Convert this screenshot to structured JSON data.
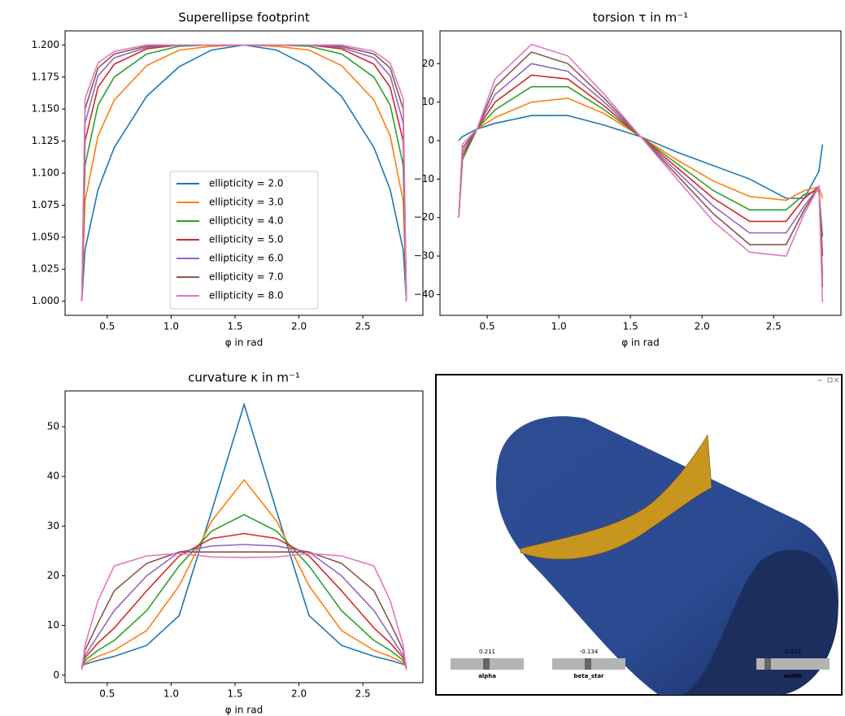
{
  "chart_data": [
    {
      "type": "line",
      "title": "Superellipse footprint",
      "x_label": "φ in rad",
      "legend": "lower center",
      "x": [
        0.301,
        0.326,
        0.428,
        0.555,
        0.809,
        1.063,
        1.317,
        1.571,
        1.825,
        2.079,
        2.333,
        2.587,
        2.714,
        2.816,
        2.841
      ],
      "xlim": [
        0.17,
        2.97
      ],
      "xticks": [
        0.5,
        {
          "value": 1,
          "label": "1.0"
        },
        1.5,
        {
          "value": 2,
          "label": "2.0"
        },
        2.5
      ],
      "ylim": [
        0.989,
        1.211
      ],
      "yticks": [
        {
          "value": 1,
          "label": "1.000"
        },
        {
          "value": 1.025,
          "label": "1.025"
        },
        {
          "value": 1.05,
          "label": "1.050"
        },
        {
          "value": 1.075,
          "label": "1.075"
        },
        {
          "value": 1.1,
          "label": "1.100"
        },
        {
          "value": 1.125,
          "label": "1.125"
        },
        {
          "value": 1.15,
          "label": "1.150"
        },
        {
          "value": 1.175,
          "label": "1.175"
        },
        {
          "value": 1.2,
          "label": "1.200"
        }
      ],
      "series": [
        {
          "name": "ellipticity = 2.0",
          "color": "#1f77b4",
          "values": [
            1.0,
            1.04,
            1.087,
            1.12,
            1.16,
            1.183,
            1.196,
            1.2,
            1.196,
            1.183,
            1.16,
            1.12,
            1.087,
            1.04,
            1.0
          ]
        },
        {
          "name": "ellipticity = 3.0",
          "color": "#ff7f0e",
          "values": [
            1.0,
            1.078,
            1.129,
            1.157,
            1.184,
            1.196,
            1.199,
            1.2,
            1.199,
            1.196,
            1.184,
            1.157,
            1.129,
            1.078,
            1.0
          ]
        },
        {
          "name": "ellipticity = 4.0",
          "color": "#2ca02c",
          "values": [
            1.0,
            1.106,
            1.153,
            1.175,
            1.193,
            1.199,
            1.2,
            1.2,
            1.2,
            1.199,
            1.193,
            1.175,
            1.153,
            1.106,
            1.0
          ]
        },
        {
          "name": "ellipticity = 5.0",
          "color": "#d62728",
          "values": [
            1.0,
            1.125,
            1.167,
            1.185,
            1.197,
            1.2,
            1.2,
            1.2,
            1.2,
            1.2,
            1.197,
            1.185,
            1.167,
            1.125,
            1.0
          ]
        },
        {
          "name": "ellipticity = 6.0",
          "color": "#9467bd",
          "values": [
            1.0,
            1.139,
            1.176,
            1.19,
            1.198,
            1.2,
            1.2,
            1.2,
            1.2,
            1.2,
            1.198,
            1.19,
            1.176,
            1.139,
            1.0
          ]
        },
        {
          "name": "ellipticity = 7.0",
          "color": "#8c564b",
          "values": [
            1.0,
            1.15,
            1.182,
            1.193,
            1.199,
            1.2,
            1.2,
            1.2,
            1.2,
            1.2,
            1.199,
            1.193,
            1.182,
            1.15,
            1.0
          ]
        },
        {
          "name": "ellipticity = 8.0",
          "color": "#e377c2",
          "values": [
            1.0,
            1.158,
            1.186,
            1.195,
            1.2,
            1.2,
            1.2,
            1.2,
            1.2,
            1.2,
            1.2,
            1.195,
            1.186,
            1.158,
            1.0
          ]
        }
      ]
    },
    {
      "type": "line",
      "title": "torsion τ in m⁻¹",
      "x_label": "φ in rad",
      "x": [
        0.301,
        0.326,
        0.428,
        0.555,
        0.809,
        1.063,
        1.317,
        1.571,
        1.825,
        2.079,
        2.333,
        2.587,
        2.714,
        2.816,
        2.841
      ],
      "xlim": [
        0.17,
        2.97
      ],
      "xticks": [
        0.5,
        {
          "value": 1,
          "label": "1.0"
        },
        1.5,
        {
          "value": 2,
          "label": "2.0"
        },
        2.5
      ],
      "ylim": [
        -45.4,
        28.5
      ],
      "yticks": [
        {
          "value": -40,
          "label": "−40"
        },
        {
          "value": -30,
          "label": "−30"
        },
        {
          "value": -20,
          "label": "−20"
        },
        {
          "value": -10,
          "label": "−10"
        },
        0,
        10,
        20
      ],
      "series": [
        {
          "color": "#1f77b4",
          "values": [
            0,
            1,
            3,
            4.5,
            6.5,
            6.5,
            4,
            1,
            -3,
            -6.5,
            -10,
            -15,
            -15,
            -8,
            -1
          ]
        },
        {
          "color": "#ff7f0e",
          "values": [
            -20,
            -5,
            3,
            6,
            10,
            11,
            7,
            1,
            -5,
            -10.5,
            -14.5,
            -15.5,
            -13,
            -12,
            -15
          ]
        },
        {
          "color": "#2ca02c",
          "values": [
            -20,
            -5,
            3,
            8,
            14,
            14,
            8,
            1,
            -6,
            -13,
            -18,
            -18,
            -14,
            -13,
            -25
          ]
        },
        {
          "color": "#d62728",
          "values": [
            -20,
            -4,
            3,
            10,
            17,
            16,
            9,
            1,
            -7,
            -15,
            -21,
            -21,
            -15,
            -12,
            -30
          ]
        },
        {
          "color": "#9467bd",
          "values": [
            -20,
            -3,
            3,
            12,
            20,
            18,
            10,
            1,
            -8,
            -17,
            -24,
            -24,
            -17,
            -12,
            -35
          ]
        },
        {
          "color": "#8c564b",
          "values": [
            -20,
            -2,
            3,
            14,
            23,
            20,
            11,
            1,
            -9,
            -19,
            -27,
            -27,
            -18,
            -12,
            -38
          ]
        },
        {
          "color": "#e377c2",
          "values": [
            -20,
            -1,
            3,
            16,
            25,
            22,
            12,
            1,
            -10,
            -21,
            -29,
            -30,
            -19,
            -12,
            -42
          ]
        }
      ]
    },
    {
      "type": "line",
      "title": "curvature κ in m⁻¹",
      "x_label": "φ in rad",
      "x": [
        0.301,
        0.326,
        0.428,
        0.555,
        0.809,
        1.063,
        1.317,
        1.571,
        1.825,
        2.079,
        2.333,
        2.587,
        2.714,
        2.816,
        2.841
      ],
      "xlim": [
        0.17,
        2.97
      ],
      "xticks": [
        0.5,
        {
          "value": 1,
          "label": "1.0"
        },
        1.5,
        {
          "value": 2,
          "label": "2.0"
        },
        2.5
      ],
      "ylim": [
        -1.5,
        57.2
      ],
      "yticks": [
        0,
        10,
        20,
        30,
        40,
        50
      ],
      "series": [
        {
          "color": "#1f77b4",
          "values": [
            2,
            2.2,
            3,
            3.8,
            6,
            12,
            33,
            54.5,
            33,
            12,
            6,
            3.8,
            3,
            2.2,
            2
          ]
        },
        {
          "color": "#ff7f0e",
          "values": [
            1.5,
            2.5,
            3.8,
            5,
            9,
            18,
            31,
            39.3,
            31,
            18,
            9,
            5,
            3.8,
            2.5,
            1.5
          ]
        },
        {
          "color": "#2ca02c",
          "values": [
            1.5,
            3,
            5,
            7,
            13,
            22,
            29,
            32.3,
            29,
            22,
            13,
            7,
            5,
            3,
            1.5
          ]
        },
        {
          "color": "#d62728",
          "values": [
            1.5,
            3.5,
            6.5,
            9.5,
            17,
            24,
            27.5,
            28.5,
            27.5,
            24,
            17,
            9.5,
            6.5,
            3.5,
            1.5
          ]
        },
        {
          "color": "#9467bd",
          "values": [
            1.5,
            4,
            8,
            13,
            20,
            24.8,
            26,
            26.3,
            26,
            24.8,
            20,
            13,
            8,
            4,
            1.5
          ]
        },
        {
          "color": "#8c564b",
          "values": [
            1.5,
            5,
            10.5,
            17,
            22.5,
            24.8,
            24.8,
            24.8,
            24.8,
            24.8,
            22.5,
            17,
            10.5,
            5,
            1.5
          ]
        },
        {
          "color": "#e377c2",
          "values": [
            1,
            6,
            15,
            22,
            24,
            24.5,
            23.8,
            23.7,
            23.8,
            24.5,
            24,
            22,
            15,
            6,
            1
          ]
        }
      ]
    }
  ],
  "viewer": {
    "sliders": [
      {
        "value_label": "0.211",
        "name": "alpha"
      },
      {
        "value_label": "-0.134",
        "name": "beta_star"
      },
      {
        "value_label": "0.513",
        "name": "width"
      }
    ]
  }
}
